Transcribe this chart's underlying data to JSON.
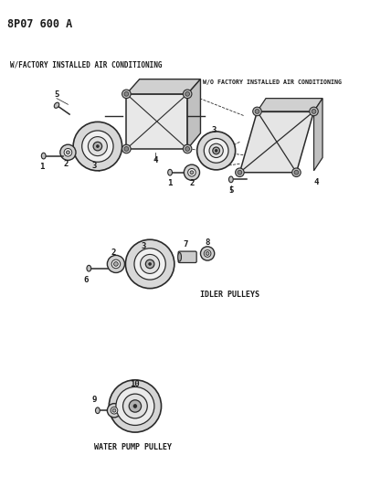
{
  "title": "8P07 600 A",
  "background_color": "#ffffff",
  "text_color": "#1a1a1a",
  "line_color": "#2a2a2a",
  "label_w_factory": "W/FACTORY INSTALLED AIR CONDITIONING",
  "label_wo_factory": "W/O FACTORY INSTALLED AIR CONDITIONING",
  "label_idler": "IDLER PULLEYS",
  "label_water": "WATER PUMP PULLEY",
  "figsize": [
    4.05,
    5.33
  ],
  "dpi": 100
}
